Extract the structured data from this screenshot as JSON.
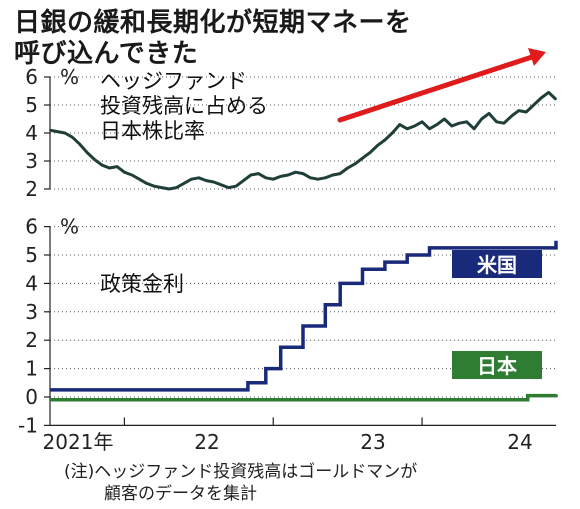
{
  "title_line1": "日銀の緩和長期化が短期マネーを",
  "title_line2": "呼び込んできた",
  "note_line1": "(注)ヘッジファンド投資残高はゴールドマンが",
  "note_line2": "顧客のデータを集計",
  "colors": {
    "hedge": "#1f3f38",
    "us": "#1a2a7a",
    "jp": "#2e7d32",
    "arrow": "#e01b1b",
    "grid": "#555555"
  },
  "chart_data": [
    {
      "type": "line",
      "label": "ヘッジファンド投資残高に占める日本株比率",
      "label_lines": [
        "ヘッジファンド",
        "投資残高に占める",
        "日本株比率"
      ],
      "unit": "%",
      "ylim": [
        2,
        6
      ],
      "yticks": [
        "2",
        "3",
        "4",
        "5",
        "6"
      ],
      "grid": true,
      "x": [
        2021.0,
        2021.05,
        2021.1,
        2021.15,
        2021.2,
        2021.25,
        2021.3,
        2021.35,
        2021.4,
        2021.45,
        2021.5,
        2021.55,
        2021.6,
        2021.65,
        2021.7,
        2021.75,
        2021.8,
        2021.85,
        2021.9,
        2021.95,
        2022.0,
        2022.05,
        2022.1,
        2022.15,
        2022.2,
        2022.25,
        2022.3,
        2022.35,
        2022.4,
        2022.45,
        2022.5,
        2022.55,
        2022.6,
        2022.65,
        2022.7,
        2022.75,
        2022.8,
        2022.85,
        2022.9,
        2022.95,
        2023.0,
        2023.05,
        2023.1,
        2023.15,
        2023.2,
        2023.25,
        2023.3,
        2023.35,
        2023.4,
        2023.45,
        2023.5,
        2023.55,
        2023.6,
        2023.65,
        2023.7,
        2023.75,
        2023.8,
        2023.85,
        2023.9,
        2023.95,
        2024.0,
        2024.05,
        2024.1,
        2024.15,
        2024.2,
        2024.25,
        2024.3,
        2024.35,
        2024.4
      ],
      "values": [
        4.1,
        4.05,
        4.0,
        3.85,
        3.6,
        3.3,
        3.05,
        2.85,
        2.75,
        2.8,
        2.6,
        2.5,
        2.35,
        2.2,
        2.1,
        2.05,
        2.0,
        2.05,
        2.2,
        2.35,
        2.4,
        2.3,
        2.25,
        2.15,
        2.05,
        2.1,
        2.3,
        2.5,
        2.55,
        2.4,
        2.35,
        2.45,
        2.5,
        2.6,
        2.55,
        2.4,
        2.35,
        2.4,
        2.5,
        2.55,
        2.75,
        2.9,
        3.1,
        3.3,
        3.55,
        3.75,
        4.0,
        4.3,
        4.15,
        4.25,
        4.4,
        4.15,
        4.3,
        4.5,
        4.25,
        4.35,
        4.4,
        4.15,
        4.5,
        4.7,
        4.4,
        4.35,
        4.6,
        4.8,
        4.75,
        5.0,
        5.25,
        5.45,
        5.2
      ]
    },
    {
      "type": "line",
      "title": "政策金利",
      "unit": "%",
      "ylim": [
        -1,
        6
      ],
      "yticks": [
        "-1",
        "0",
        "1",
        "2",
        "3",
        "4",
        "5",
        "6"
      ],
      "xticks": [
        "2021年",
        "22",
        "23",
        "24"
      ],
      "grid": true,
      "series": [
        {
          "name": "米国",
          "x": [
            2021.0,
            2022.2,
            2022.33,
            2022.45,
            2022.55,
            2022.7,
            2022.85,
            2022.95,
            2023.1,
            2023.25,
            2023.4,
            2023.55,
            2024.4
          ],
          "values": [
            0.25,
            0.25,
            0.5,
            1.0,
            1.75,
            2.5,
            3.25,
            4.0,
            4.5,
            4.75,
            5.0,
            5.25,
            5.5
          ]
        },
        {
          "name": "日本",
          "x": [
            2021.0,
            2024.2,
            2024.21,
            2024.4
          ],
          "values": [
            -0.1,
            -0.1,
            0.05,
            0.1
          ]
        }
      ]
    }
  ]
}
